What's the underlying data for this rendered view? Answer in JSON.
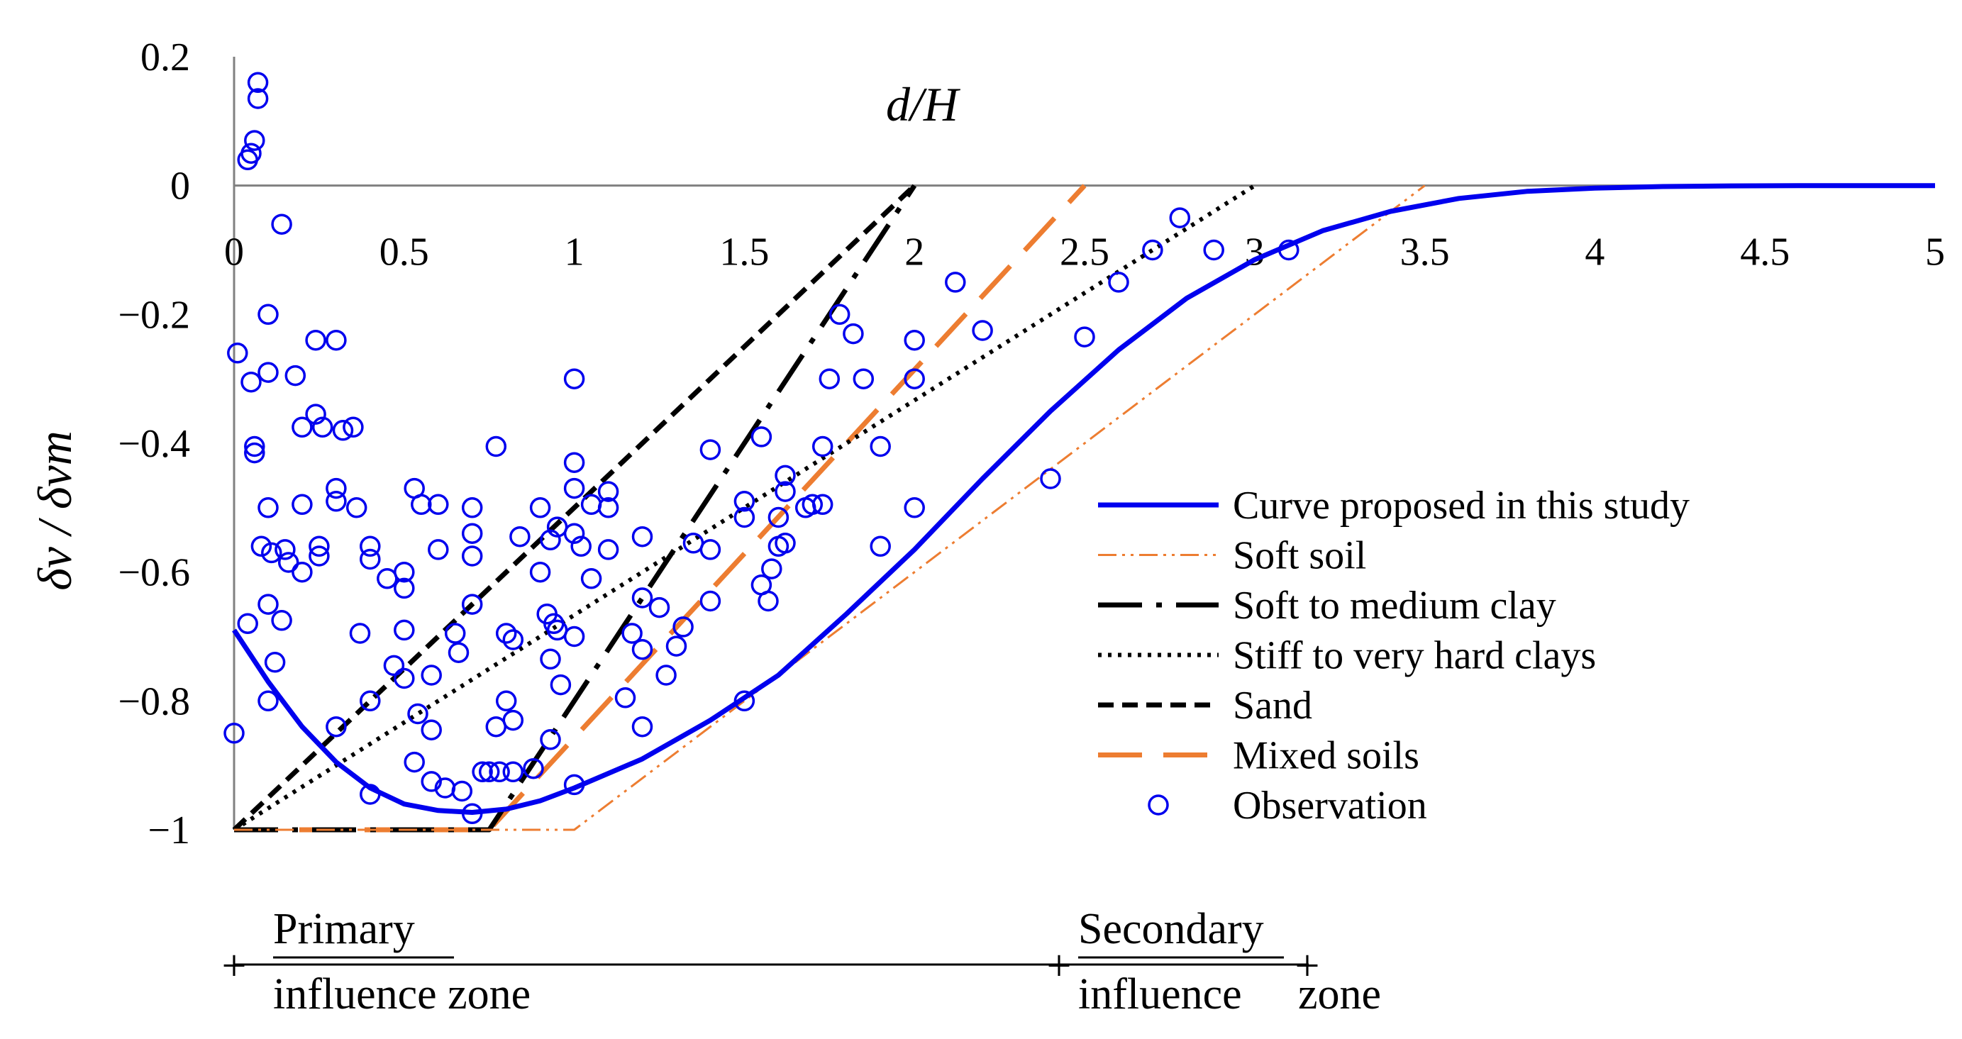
{
  "chart_data": {
    "type": "scatter",
    "title": "",
    "xlabel": "d/H",
    "ylabel": "δv / δvm",
    "xlim": [
      0,
      5
    ],
    "ylim": [
      -1,
      0.2
    ],
    "x_ticks": [
      0,
      0.5,
      1,
      1.5,
      2,
      2.5,
      3,
      3.5,
      4,
      4.5,
      5
    ],
    "x_tick_labels": [
      "0",
      "0.5",
      "1",
      "1.5",
      "2",
      "2.5",
      "3",
      "3.5",
      "4",
      "4.5",
      "5"
    ],
    "y_ticks": [
      0.2,
      0,
      -0.2,
      -0.4,
      -0.6,
      -0.8,
      -1
    ],
    "y_tick_labels": [
      "0.2",
      "0",
      "−0.2",
      "−0.4",
      "−0.6",
      "−0.8",
      "−1"
    ],
    "legend_position": "bottom-right",
    "series": [
      {
        "name": "Curve proposed in this study",
        "kind": "line",
        "color": "#0000ee",
        "style": "solid",
        "x": [
          0,
          0.1,
          0.2,
          0.3,
          0.4,
          0.5,
          0.6,
          0.7,
          0.8,
          0.9,
          1.0,
          1.2,
          1.4,
          1.6,
          1.8,
          2.0,
          2.2,
          2.4,
          2.6,
          2.8,
          3.0,
          3.2,
          3.4,
          3.6,
          3.8,
          4.0,
          4.2,
          4.4,
          4.6,
          4.8,
          5.0
        ],
        "y": [
          -0.69,
          -0.77,
          -0.84,
          -0.895,
          -0.935,
          -0.96,
          -0.97,
          -0.973,
          -0.968,
          -0.955,
          -0.935,
          -0.89,
          -0.83,
          -0.76,
          -0.665,
          -0.565,
          -0.455,
          -0.35,
          -0.255,
          -0.175,
          -0.115,
          -0.07,
          -0.04,
          -0.02,
          -0.009,
          -0.004,
          -0.0015,
          -0.0005,
          0,
          0,
          0
        ]
      },
      {
        "name": "Soft soil",
        "kind": "line",
        "color": "#ed7d31",
        "style": "dash-dot-dot",
        "x": [
          0,
          1,
          3.5
        ],
        "y": [
          -1,
          -1,
          0
        ]
      },
      {
        "name": "Soft to medium clay",
        "kind": "line",
        "color": "#000000",
        "style": "long-dash-dot",
        "x": [
          0,
          0.75,
          2
        ],
        "y": [
          -1,
          -1,
          0
        ]
      },
      {
        "name": "Stiff to very hard clays",
        "kind": "line",
        "color": "#000000",
        "style": "dotted",
        "x": [
          0,
          3
        ],
        "y": [
          -1,
          0
        ]
      },
      {
        "name": "Sand",
        "kind": "line",
        "color": "#000000",
        "style": "dashed",
        "x": [
          0,
          2
        ],
        "y": [
          -1,
          0
        ]
      },
      {
        "name": "Mixed soils",
        "kind": "line",
        "color": "#ed7d31",
        "style": "long-dash",
        "x": [
          0,
          0.75,
          2.5
        ],
        "y": [
          -1,
          -1,
          0
        ]
      },
      {
        "name": "Observation",
        "kind": "scatter",
        "color": "#0000ee",
        "points": [
          [
            0.07,
            0.16
          ],
          [
            0.07,
            0.135
          ],
          [
            0.06,
            0.07
          ],
          [
            0.05,
            0.05
          ],
          [
            0.04,
            0.04
          ],
          [
            0.14,
            -0.06
          ],
          [
            0.01,
            -0.26
          ],
          [
            0.05,
            -0.305
          ],
          [
            0.1,
            -0.2
          ],
          [
            0.1,
            -0.29
          ],
          [
            0.06,
            -0.405
          ],
          [
            0.06,
            -0.415
          ],
          [
            0.18,
            -0.295
          ],
          [
            0.24,
            -0.24
          ],
          [
            0.3,
            -0.24
          ],
          [
            0.24,
            -0.355
          ],
          [
            0.26,
            -0.375
          ],
          [
            0.2,
            -0.375
          ],
          [
            0.32,
            -0.38
          ],
          [
            0.35,
            -0.375
          ],
          [
            0.1,
            -0.5
          ],
          [
            0.08,
            -0.56
          ],
          [
            0.11,
            -0.57
          ],
          [
            0.15,
            -0.565
          ],
          [
            0.16,
            -0.585
          ],
          [
            0.2,
            -0.6
          ],
          [
            0.25,
            -0.575
          ],
          [
            0.25,
            -0.56
          ],
          [
            0.3,
            -0.49
          ],
          [
            0.3,
            -0.47
          ],
          [
            0.36,
            -0.5
          ],
          [
            0.2,
            -0.495
          ],
          [
            0.04,
            -0.68
          ],
          [
            0.1,
            -0.65
          ],
          [
            0.14,
            -0.675
          ],
          [
            0.12,
            -0.74
          ],
          [
            0.1,
            -0.8
          ],
          [
            0.37,
            -0.695
          ],
          [
            0.4,
            -0.56
          ],
          [
            0.4,
            -0.58
          ],
          [
            0.45,
            -0.61
          ],
          [
            0.5,
            -0.6
          ],
          [
            0.5,
            -0.625
          ],
          [
            0.5,
            -0.69
          ],
          [
            0.47,
            -0.745
          ],
          [
            0.5,
            -0.765
          ],
          [
            0.54,
            -0.82
          ],
          [
            0.58,
            -0.76
          ],
          [
            0.58,
            -0.845
          ],
          [
            0.4,
            -0.8
          ],
          [
            0.3,
            -0.84
          ],
          [
            0.4,
            -0.945
          ],
          [
            0.53,
            -0.47
          ],
          [
            0.55,
            -0.495
          ],
          [
            0.6,
            -0.495
          ],
          [
            0.6,
            -0.565
          ],
          [
            0.65,
            -0.695
          ],
          [
            0.66,
            -0.725
          ],
          [
            0.7,
            -0.65
          ],
          [
            0.53,
            -0.895
          ],
          [
            0.58,
            -0.925
          ],
          [
            0.62,
            -0.935
          ],
          [
            0.67,
            -0.94
          ],
          [
            0.7,
            -0.975
          ],
          [
            0.73,
            -0.91
          ],
          [
            0.75,
            -0.91
          ],
          [
            0.78,
            -0.91
          ],
          [
            0.82,
            -0.91
          ],
          [
            0.82,
            -0.83
          ],
          [
            0.8,
            -0.8
          ],
          [
            0.77,
            -0.84
          ],
          [
            0.7,
            -0.5
          ],
          [
            0.7,
            -0.54
          ],
          [
            0.7,
            -0.575
          ],
          [
            0.77,
            -0.405
          ],
          [
            0.84,
            -0.545
          ],
          [
            0.9,
            -0.5
          ],
          [
            0.93,
            -0.55
          ],
          [
            0.95,
            -0.53
          ],
          [
            0.9,
            -0.6
          ],
          [
            0.92,
            -0.665
          ],
          [
            0.94,
            -0.68
          ],
          [
            0.8,
            -0.695
          ],
          [
            0.82,
            -0.705
          ],
          [
            0.95,
            -0.69
          ],
          [
            0.93,
            -0.735
          ],
          [
            0.96,
            -0.775
          ],
          [
            0.93,
            -0.86
          ],
          [
            0.88,
            -0.905
          ],
          [
            1.0,
            -0.3
          ],
          [
            1.0,
            -0.43
          ],
          [
            1.0,
            -0.47
          ],
          [
            1.05,
            -0.495
          ],
          [
            1.1,
            -0.475
          ],
          [
            1.1,
            -0.5
          ],
          [
            1.0,
            -0.54
          ],
          [
            1.02,
            -0.56
          ],
          [
            1.05,
            -0.61
          ],
          [
            1.1,
            -0.565
          ],
          [
            1.0,
            -0.7
          ],
          [
            1.2,
            -0.545
          ],
          [
            1.2,
            -0.64
          ],
          [
            1.25,
            -0.655
          ],
          [
            1.17,
            -0.695
          ],
          [
            1.2,
            -0.72
          ],
          [
            1.15,
            -0.795
          ],
          [
            1.2,
            -0.84
          ],
          [
            1.27,
            -0.76
          ],
          [
            1.3,
            -0.715
          ],
          [
            1.32,
            -0.685
          ],
          [
            1.35,
            -0.555
          ],
          [
            1.4,
            -0.41
          ],
          [
            1.4,
            -0.565
          ],
          [
            1.4,
            -0.645
          ],
          [
            1.5,
            -0.49
          ],
          [
            1.5,
            -0.515
          ],
          [
            1.55,
            -0.39
          ],
          [
            1.55,
            -0.62
          ],
          [
            1.57,
            -0.645
          ],
          [
            1.6,
            -0.56
          ],
          [
            1.58,
            -0.595
          ],
          [
            1.62,
            -0.45
          ],
          [
            1.62,
            -0.475
          ],
          [
            1.6,
            -0.515
          ],
          [
            1.62,
            -0.555
          ],
          [
            1.7,
            -0.495
          ],
          [
            1.68,
            -0.5
          ],
          [
            1.73,
            -0.405
          ],
          [
            1.73,
            -0.495
          ],
          [
            1.75,
            -0.3
          ],
          [
            1.78,
            -0.2
          ],
          [
            1.82,
            -0.23
          ],
          [
            1.85,
            -0.3
          ],
          [
            1.9,
            -0.405
          ],
          [
            1.9,
            -0.56
          ],
          [
            2.0,
            -0.24
          ],
          [
            2.0,
            -0.3
          ],
          [
            2.0,
            -0.5
          ],
          [
            2.12,
            -0.15
          ],
          [
            2.2,
            -0.225
          ],
          [
            2.4,
            -0.455
          ],
          [
            2.5,
            -0.235
          ],
          [
            2.6,
            -0.15
          ],
          [
            2.7,
            -0.1
          ],
          [
            2.78,
            -0.05
          ],
          [
            2.88,
            -0.1
          ],
          [
            3.1,
            -0.1
          ],
          [
            1.5,
            -0.8
          ],
          [
            1.0,
            -0.93
          ],
          [
            0.0,
            -0.85
          ]
        ]
      }
    ],
    "zones": {
      "primary_line1": "Primary",
      "primary_line2": "influence zone",
      "secondary_line1": "Secondary",
      "secondary_line2": "influence",
      "secondary_line3": "zone"
    }
  }
}
